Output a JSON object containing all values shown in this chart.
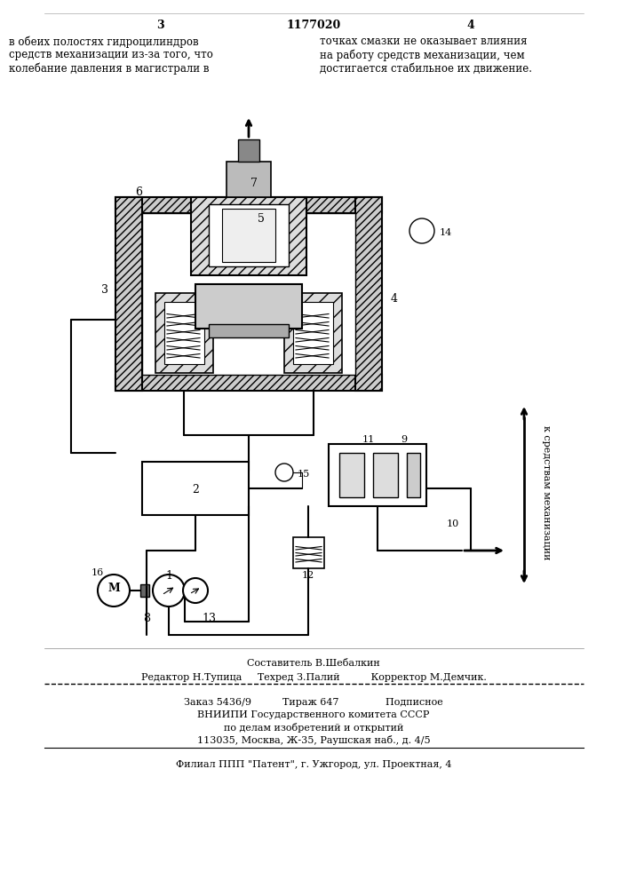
{
  "page_number_left": "3",
  "patent_number": "1177020",
  "page_number_right": "4",
  "text_left": "в обеих полостях гидроцилиндров\nсредств механизации из-за того, что\nколебание давления в магистрали в",
  "text_right": "точках смазки не оказывает влияния\nна работу средств механизации, чем\nдостигается стабильное их движение.",
  "rotated_text": "к средствам механизации",
  "editor_line": "Составитель В.Шебалкин",
  "editor_row": "Редактор Н.Тупица     Техред З.Палий          Корректор М.Демчик.",
  "order_line": "Заказ 5436/9          Тираж 647               Подписное",
  "institute_line1": "ВНИИПИ Государственного комитета СССР",
  "institute_line2": "по делам изобретений и открытий",
  "institute_line3": "113035, Москва, Ж-35, Раушская наб., д. 4/5",
  "patent_line": "Филиал ППП \"Патент\", г. Ужгород, ул. Проектная, 4",
  "bg_color": "#ffffff",
  "line_color": "#000000",
  "text_color": "#000000"
}
